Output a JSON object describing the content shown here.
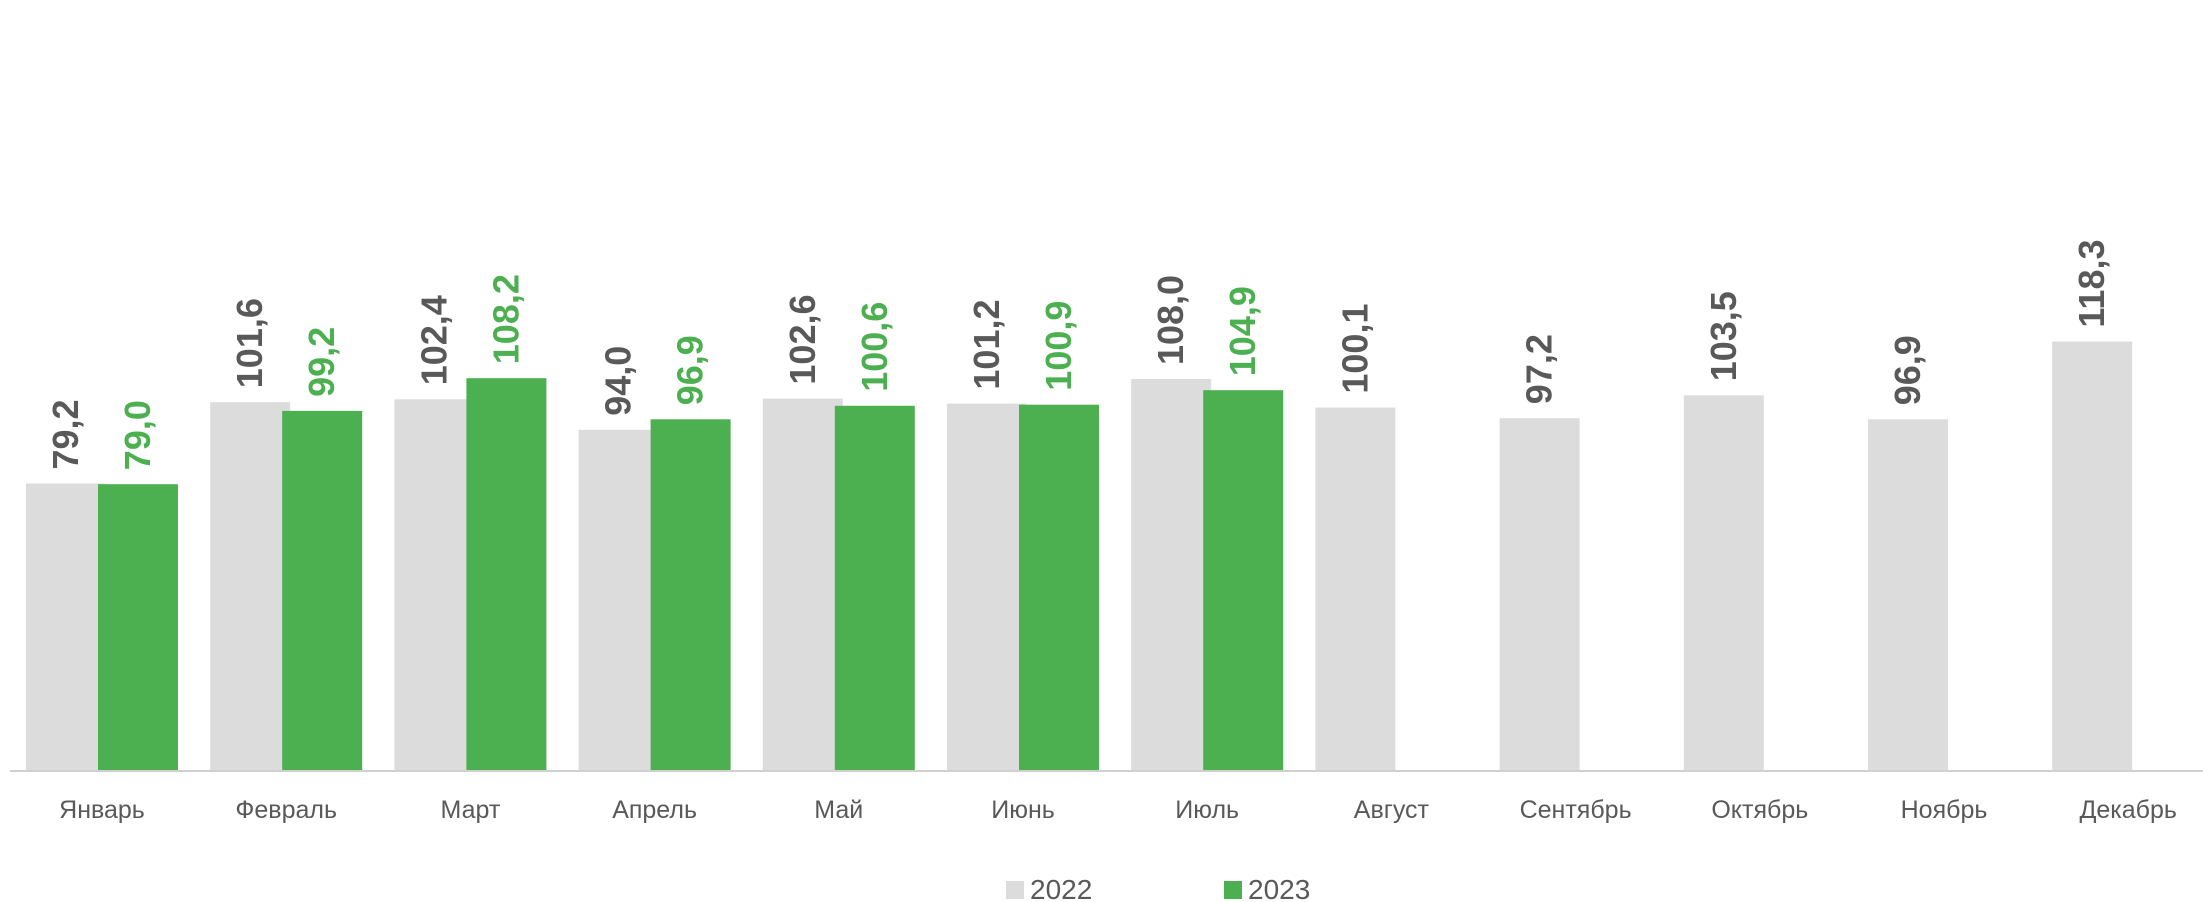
{
  "chart_data": {
    "type": "bar",
    "categories": [
      "Январь",
      "Февраль",
      "Март",
      "Апрель",
      "Май",
      "Июнь",
      "Июль",
      "Август",
      "Сентябрь",
      "Октябрь",
      "Ноябрь",
      "Декабрь"
    ],
    "series": [
      {
        "name": "2022",
        "color": "#dcdcdc",
        "label_color": "#595959",
        "values": [
          79.2,
          101.6,
          102.4,
          94.0,
          102.6,
          101.2,
          108.0,
          100.1,
          97.2,
          103.5,
          96.9,
          118.3
        ],
        "labels": [
          "79,2",
          "101,6",
          "102,4",
          "94,0",
          "102,6",
          "101,2",
          "108,0",
          "100,1",
          "97,2",
          "103,5",
          "96,9",
          "118,3"
        ]
      },
      {
        "name": "2023",
        "color": "#4caf50",
        "label_color": "#4caf50",
        "values": [
          79.0,
          99.2,
          108.2,
          96.9,
          100.6,
          100.9,
          104.9,
          null,
          null,
          null,
          null,
          null
        ],
        "labels": [
          "79,0",
          "99,2",
          "108,2",
          "96,9",
          "100,6",
          "100,9",
          "104,9",
          null,
          null,
          null,
          null,
          null
        ]
      }
    ],
    "title": "",
    "xlabel": "",
    "ylabel": "",
    "ylim": [
      0,
      120
    ],
    "grid": false,
    "legend": "bottom-center",
    "data_labels": "rotated-vertical"
  }
}
